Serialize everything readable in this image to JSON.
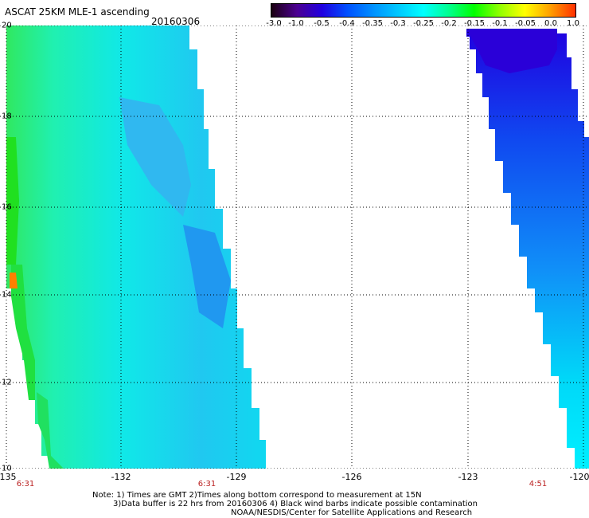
{
  "title": "ASCAT 25KM MLE-1 ascending",
  "date": "20160306",
  "colorbar": {
    "ticks": [
      "-3.0",
      "-1.0",
      "-0.5",
      "-0.4",
      "-0.35",
      "-0.3",
      "-0.25",
      "-0.2",
      "-0.15",
      "-0.1",
      "-0.05",
      "0.0",
      "1.0"
    ],
    "colors": [
      "#1a0010",
      "#4b0090",
      "#2000e0",
      "#0050ff",
      "#0090ff",
      "#00c8ff",
      "#00ffff",
      "#00ff90",
      "#00ff00",
      "#90ff00",
      "#ffff00",
      "#ffa000",
      "#ff3000"
    ]
  },
  "x_ticks": [
    "-135",
    "-132",
    "-129",
    "-126",
    "-123",
    "-120"
  ],
  "y_ticks": [
    "20",
    "18",
    "16",
    "14",
    "12",
    "10"
  ],
  "times": [
    "6:31",
    "6:31",
    "4:51"
  ],
  "notes": [
    "Note: 1) Times are GMT 2)Times along bottom correspond to measurement at 15N",
    "3)Data buffer is 22 hrs from 20160306 4) Black wind barbs indicate possible contamination",
    "NOAA/NESDIS/Center for Satellite Applications and Research"
  ]
}
